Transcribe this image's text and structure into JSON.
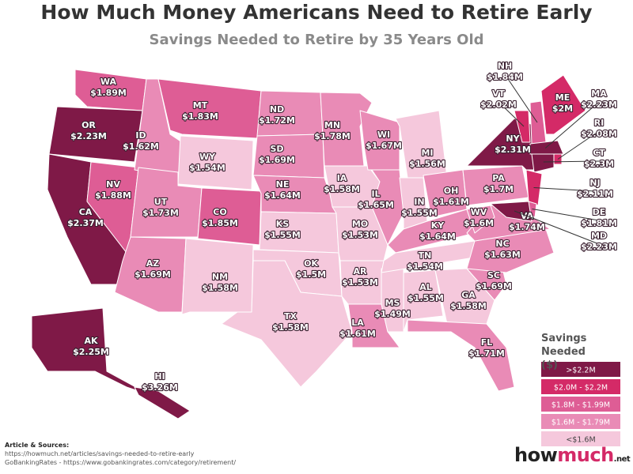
{
  "header": {
    "title": "How Much Money Americans Need to Retire Early",
    "subtitle": "Savings Needed to Retire by 35 Years Old"
  },
  "map": {
    "states": [
      {
        "abbr": "WA",
        "value": 1.89,
        "value_label": "$1.89M"
      },
      {
        "abbr": "OR",
        "value": 2.23,
        "value_label": "$2.23M"
      },
      {
        "abbr": "CA",
        "value": 2.37,
        "value_label": "$2.37M"
      },
      {
        "abbr": "NV",
        "value": 1.88,
        "value_label": "$1.88M"
      },
      {
        "abbr": "ID",
        "value": 1.62,
        "value_label": "$1.62M"
      },
      {
        "abbr": "MT",
        "value": 1.83,
        "value_label": "$1.83M"
      },
      {
        "abbr": "WY",
        "value": 1.54,
        "value_label": "$1.54M"
      },
      {
        "abbr": "UT",
        "value": 1.73,
        "value_label": "$1.73M"
      },
      {
        "abbr": "CO",
        "value": 1.85,
        "value_label": "$1.85M"
      },
      {
        "abbr": "AZ",
        "value": 1.69,
        "value_label": "$1.69M"
      },
      {
        "abbr": "NM",
        "value": 1.58,
        "value_label": "$1.58M"
      },
      {
        "abbr": "ND",
        "value": 1.72,
        "value_label": "$1.72M"
      },
      {
        "abbr": "SD",
        "value": 1.69,
        "value_label": "$1.69M"
      },
      {
        "abbr": "NE",
        "value": 1.64,
        "value_label": "$1.64M"
      },
      {
        "abbr": "KS",
        "value": 1.55,
        "value_label": "$1.55M"
      },
      {
        "abbr": "OK",
        "value": 1.5,
        "value_label": "$1.5M"
      },
      {
        "abbr": "TX",
        "value": 1.58,
        "value_label": "$1.58M"
      },
      {
        "abbr": "MN",
        "value": 1.78,
        "value_label": "$1.78M"
      },
      {
        "abbr": "IA",
        "value": 1.58,
        "value_label": "$1.58M"
      },
      {
        "abbr": "MO",
        "value": 1.53,
        "value_label": "$1.53M"
      },
      {
        "abbr": "AR",
        "value": 1.53,
        "value_label": "$1.53M"
      },
      {
        "abbr": "LA",
        "value": 1.61,
        "value_label": "$1.61M"
      },
      {
        "abbr": "WI",
        "value": 1.67,
        "value_label": "$1.67M"
      },
      {
        "abbr": "IL",
        "value": 1.65,
        "value_label": "$1.65M"
      },
      {
        "abbr": "MS",
        "value": 1.49,
        "value_label": "$1.49M"
      },
      {
        "abbr": "MI",
        "value": 1.56,
        "value_label": "$1.56M"
      },
      {
        "abbr": "IN",
        "value": 1.55,
        "value_label": "$1.55M"
      },
      {
        "abbr": "OH",
        "value": 1.61,
        "value_label": "$1.61M"
      },
      {
        "abbr": "KY",
        "value": 1.64,
        "value_label": "$1.64M"
      },
      {
        "abbr": "TN",
        "value": 1.54,
        "value_label": "$1.54M"
      },
      {
        "abbr": "AL",
        "value": 1.55,
        "value_label": "$1.55M"
      },
      {
        "abbr": "GA",
        "value": 1.58,
        "value_label": "$1.58M"
      },
      {
        "abbr": "FL",
        "value": 1.71,
        "value_label": "$1.71M"
      },
      {
        "abbr": "SC",
        "value": 1.69,
        "value_label": "$1.69M"
      },
      {
        "abbr": "NC",
        "value": 1.63,
        "value_label": "$1.63M"
      },
      {
        "abbr": "VA",
        "value": 1.74,
        "value_label": "$1.74M"
      },
      {
        "abbr": "WV",
        "value": 1.6,
        "value_label": "$1.6M"
      },
      {
        "abbr": "PA",
        "value": 1.7,
        "value_label": "$1.7M"
      },
      {
        "abbr": "NY",
        "value": 2.31,
        "value_label": "$2.31M"
      },
      {
        "abbr": "VT",
        "value": 2.02,
        "value_label": "$2.02M"
      },
      {
        "abbr": "NH",
        "value": 1.84,
        "value_label": "$1.84M"
      },
      {
        "abbr": "ME",
        "value": 2,
        "value_label": "$2M"
      },
      {
        "abbr": "MA",
        "value": 2.23,
        "value_label": "$2.23M"
      },
      {
        "abbr": "RI",
        "value": 2.08,
        "value_label": "$2.08M"
      },
      {
        "abbr": "CT",
        "value": 2.3,
        "value_label": "$2.3M"
      },
      {
        "abbr": "NJ",
        "value": 2.11,
        "value_label": "$2.11M"
      },
      {
        "abbr": "DE",
        "value": 1.81,
        "value_label": "$1.81M"
      },
      {
        "abbr": "MD",
        "value": 2.23,
        "value_label": "$2.23M"
      },
      {
        "abbr": "AK",
        "value": 2.25,
        "value_label": "$2.25M"
      },
      {
        "abbr": "HI",
        "value": 3.26,
        "value_label": "$3.26M"
      }
    ]
  },
  "legend": {
    "title": "Savings Needed ($)",
    "bins": [
      {
        "label": ">$2.2M",
        "range": [
          2.2,
          null
        ],
        "color": "#7f1947"
      },
      {
        "label": "$2.0M - $2.2M",
        "range": [
          2.0,
          2.2
        ],
        "color": "#d42a67"
      },
      {
        "label": "$1.8M - $1.99M",
        "range": [
          1.8,
          1.99
        ],
        "color": "#de5d95"
      },
      {
        "label": "$1.6M - $1.79M",
        "range": [
          1.6,
          1.79
        ],
        "color": "#e98bb6"
      },
      {
        "label": "<$1.6M",
        "range": [
          null,
          1.6
        ],
        "color": "#f5c8dc"
      }
    ]
  },
  "footer": {
    "sources_title": "Article & Sources:",
    "sources": [
      "https://howmuch.net/articles/savings-needed-to-retire-early",
      "GoBankingRates - https://www.gobankingrates.com/category/retirement/"
    ],
    "logo": [
      "how",
      "much",
      ".net"
    ]
  }
}
